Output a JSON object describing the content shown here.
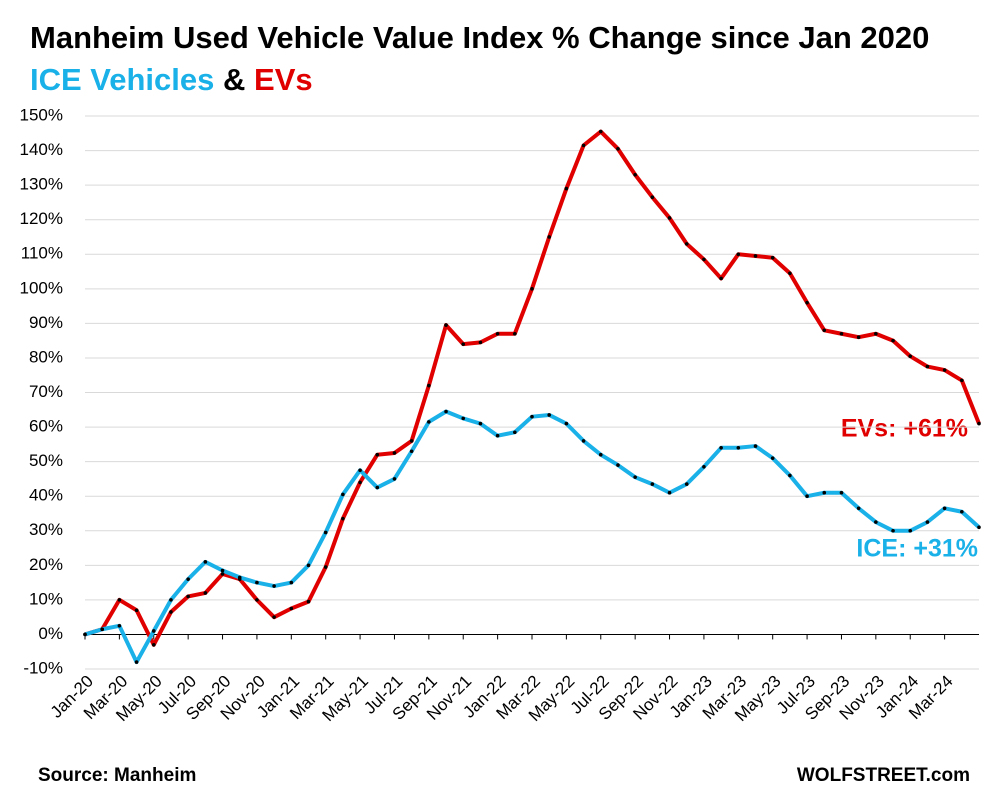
{
  "chart_data": {
    "type": "line",
    "title": "Manheim Used Vehicle Value Index % Change since Jan 2020",
    "subtitle": {
      "parts": [
        {
          "text": "ICE Vehicles",
          "color": "#1ab0e8"
        },
        {
          "text": "&",
          "color": "#000000"
        },
        {
          "text": "EVs",
          "color": "#e00000"
        }
      ]
    },
    "categories": [
      "Jan-20",
      null,
      "Mar-20",
      null,
      "May-20",
      null,
      "Jul-20",
      null,
      "Sep-20",
      null,
      "Nov-20",
      null,
      "Jan-21",
      null,
      "Mar-21",
      null,
      "May-21",
      null,
      "Jul-21",
      null,
      "Sep-21",
      null,
      "Nov-21",
      null,
      "Jan-22",
      null,
      "Mar-22",
      null,
      "May-22",
      null,
      "Jul-22",
      null,
      "Sep-22",
      null,
      "Nov-22",
      null,
      "Jan-23",
      null,
      "Mar-23",
      null,
      "May-23",
      null,
      "Jul-23",
      null,
      "Sep-23",
      null,
      "Nov-23",
      null,
      "Jan-24",
      null,
      "Mar-24",
      null,
      null
    ],
    "series": [
      {
        "name": "EVs",
        "color": "#e00000",
        "values": [
          0,
          1.5,
          10,
          7,
          -3,
          6.5,
          11,
          12,
          17.5,
          16,
          10,
          5,
          7.5,
          9.5,
          19.5,
          33.5,
          44,
          52,
          52.5,
          56,
          72,
          89.5,
          84,
          84.5,
          87,
          87,
          100,
          115,
          129,
          141.5,
          145.5,
          140.5,
          133,
          126.5,
          120.5,
          113,
          108.5,
          103,
          110,
          109.5,
          109,
          104.5,
          96,
          88,
          87,
          86,
          87,
          85,
          80.5,
          77.5,
          76.5,
          73.5,
          61
        ]
      },
      {
        "name": "ICE",
        "color": "#1ab0e8",
        "values": [
          0,
          1.5,
          2.5,
          -8,
          1,
          10,
          16,
          21,
          18.5,
          16.5,
          15,
          14,
          15,
          20,
          29.5,
          40.5,
          47.5,
          42.5,
          45,
          53,
          61.5,
          64.5,
          62.5,
          61,
          57.5,
          58.5,
          63,
          63.5,
          61,
          56,
          52,
          49,
          45.5,
          43.5,
          41,
          43.5,
          48.5,
          54,
          54,
          54.5,
          51,
          46,
          40,
          41,
          41,
          36.5,
          32.5,
          30,
          30,
          32.5,
          36.5,
          35.5,
          31
        ]
      }
    ],
    "annotations": [
      {
        "text": "EVs: +61%",
        "color": "#e00000"
      },
      {
        "text": "ICE: +31%",
        "color": "#1ab0e8"
      }
    ],
    "source": "Source: Manheim",
    "credit": "WOLFSTREET.com",
    "ylim": [
      -10,
      150
    ],
    "yticks": [
      {
        "value": -10,
        "label": "-10%"
      },
      {
        "value": 0,
        "label": "0%"
      },
      {
        "value": 10,
        "label": "10%"
      },
      {
        "value": 20,
        "label": "20%"
      },
      {
        "value": 30,
        "label": "30%"
      },
      {
        "value": 40,
        "label": "40%"
      },
      {
        "value": 50,
        "label": "50%"
      },
      {
        "value": 60,
        "label": "60%"
      },
      {
        "value": 70,
        "label": "70%"
      },
      {
        "value": 80,
        "label": "80%"
      },
      {
        "value": 90,
        "label": "90%"
      },
      {
        "value": 100,
        "label": "100%"
      },
      {
        "value": 110,
        "label": "110%"
      },
      {
        "value": 120,
        "label": "120%"
      },
      {
        "value": 130,
        "label": "130%"
      },
      {
        "value": 140,
        "label": "140%"
      },
      {
        "value": 150,
        "label": "150%"
      }
    ],
    "grid": true
  }
}
